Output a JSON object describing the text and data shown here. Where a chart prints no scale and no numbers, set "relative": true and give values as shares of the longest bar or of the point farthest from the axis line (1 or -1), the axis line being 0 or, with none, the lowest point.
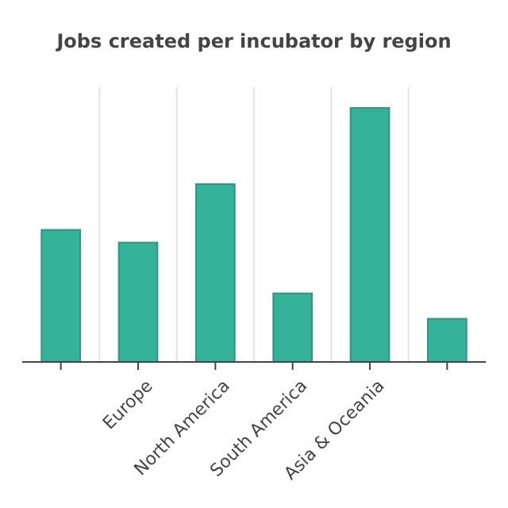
{
  "chart_data": {
    "type": "bar",
    "title": "Jobs created per incubator by region",
    "categories": [
      null,
      "Europe",
      "North America",
      "South America",
      "Asia & Oceania",
      null
    ],
    "values": [
      0.52,
      0.47,
      0.7,
      0.27,
      1,
      0.17
    ],
    "color": "#35b39a",
    "relative": true,
    "grid": "x"
  }
}
